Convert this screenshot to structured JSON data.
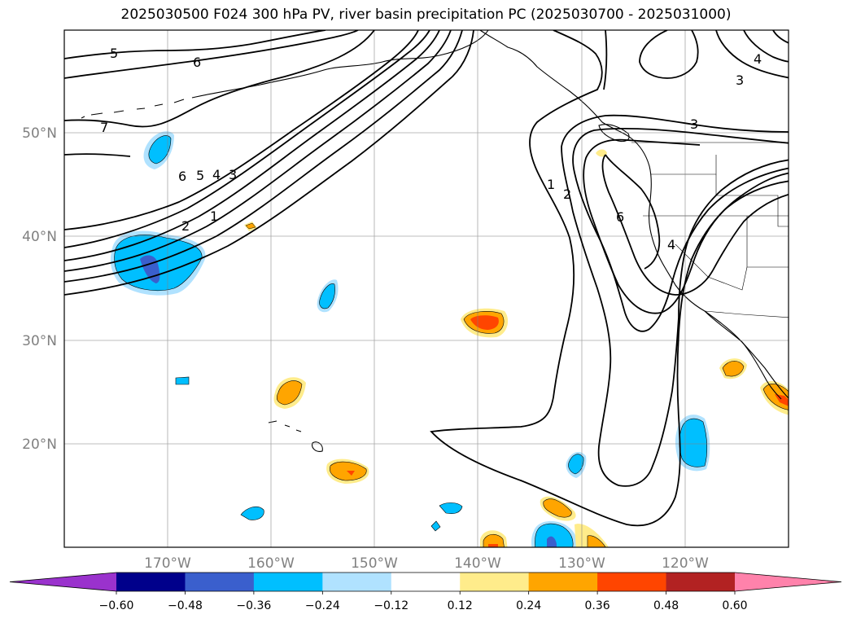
{
  "title": "2025030500 F024 300 hPa PV, river basin precipitation PC (2025030700 - 2025031000)",
  "lat_labels": [
    "50°N",
    "40°N",
    "30°N",
    "20°N"
  ],
  "lon_labels": [
    "170°W",
    "160°W",
    "150°W",
    "140°W",
    "130°W",
    "120°W"
  ],
  "colorbar": {
    "colors": [
      "#9a32cd",
      "#00008b",
      "#3a5fcd",
      "#00bfff",
      "#b0e2ff",
      "#ffffff",
      "#ffec8b",
      "#ffa500",
      "#ff4500",
      "#b22222",
      "#ff82ab"
    ],
    "tick_labels": [
      "−0.60",
      "−0.48",
      "−0.36",
      "−0.24",
      "−0.12",
      "0.12",
      "0.24",
      "0.36",
      "0.48",
      "0.60"
    ]
  },
  "pv_contour_labels": [
    {
      "text": "5"
    },
    {
      "text": "6"
    },
    {
      "text": "7"
    },
    {
      "text": "6"
    },
    {
      "text": "5"
    },
    {
      "text": "4"
    },
    {
      "text": "3"
    },
    {
      "text": "2"
    },
    {
      "text": "1"
    },
    {
      "text": "3"
    },
    {
      "text": "4"
    },
    {
      "text": "3"
    },
    {
      "text": "1"
    },
    {
      "text": "2"
    },
    {
      "text": "6"
    },
    {
      "text": "4"
    }
  ]
}
